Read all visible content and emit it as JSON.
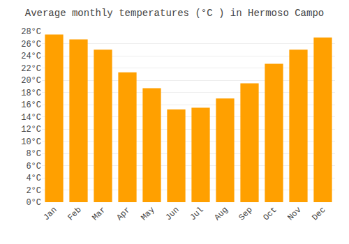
{
  "chart_data": {
    "type": "bar",
    "title": "Average monthly temperatures (°C ) in Hermoso Campo",
    "categories": [
      "Jan",
      "Feb",
      "Mar",
      "Apr",
      "May",
      "Jun",
      "Jul",
      "Aug",
      "Sep",
      "Oct",
      "Nov",
      "Dec"
    ],
    "values": [
      27.5,
      26.7,
      25.0,
      21.3,
      18.7,
      15.2,
      15.5,
      17.0,
      19.5,
      22.7,
      25.0,
      27.0
    ],
    "color": "#FFA000",
    "ylim": [
      0,
      28
    ],
    "yticks": [
      {
        "value": 0,
        "label": "0°C"
      },
      {
        "value": 2,
        "label": "2°C"
      },
      {
        "value": 4,
        "label": "4°C"
      },
      {
        "value": 6,
        "label": "6°C"
      },
      {
        "value": 8,
        "label": "8°C"
      },
      {
        "value": 10,
        "label": "10°C"
      },
      {
        "value": 12,
        "label": "12°C"
      },
      {
        "value": 14,
        "label": "14°C"
      },
      {
        "value": 16,
        "label": "16°C"
      },
      {
        "value": 18,
        "label": "18°C"
      },
      {
        "value": 20,
        "label": "20°C"
      },
      {
        "value": 22,
        "label": "22°C"
      },
      {
        "value": 24,
        "label": "24°C"
      },
      {
        "value": 26,
        "label": "26°C"
      },
      {
        "value": 28,
        "label": "28°C"
      }
    ],
    "grid": true
  }
}
